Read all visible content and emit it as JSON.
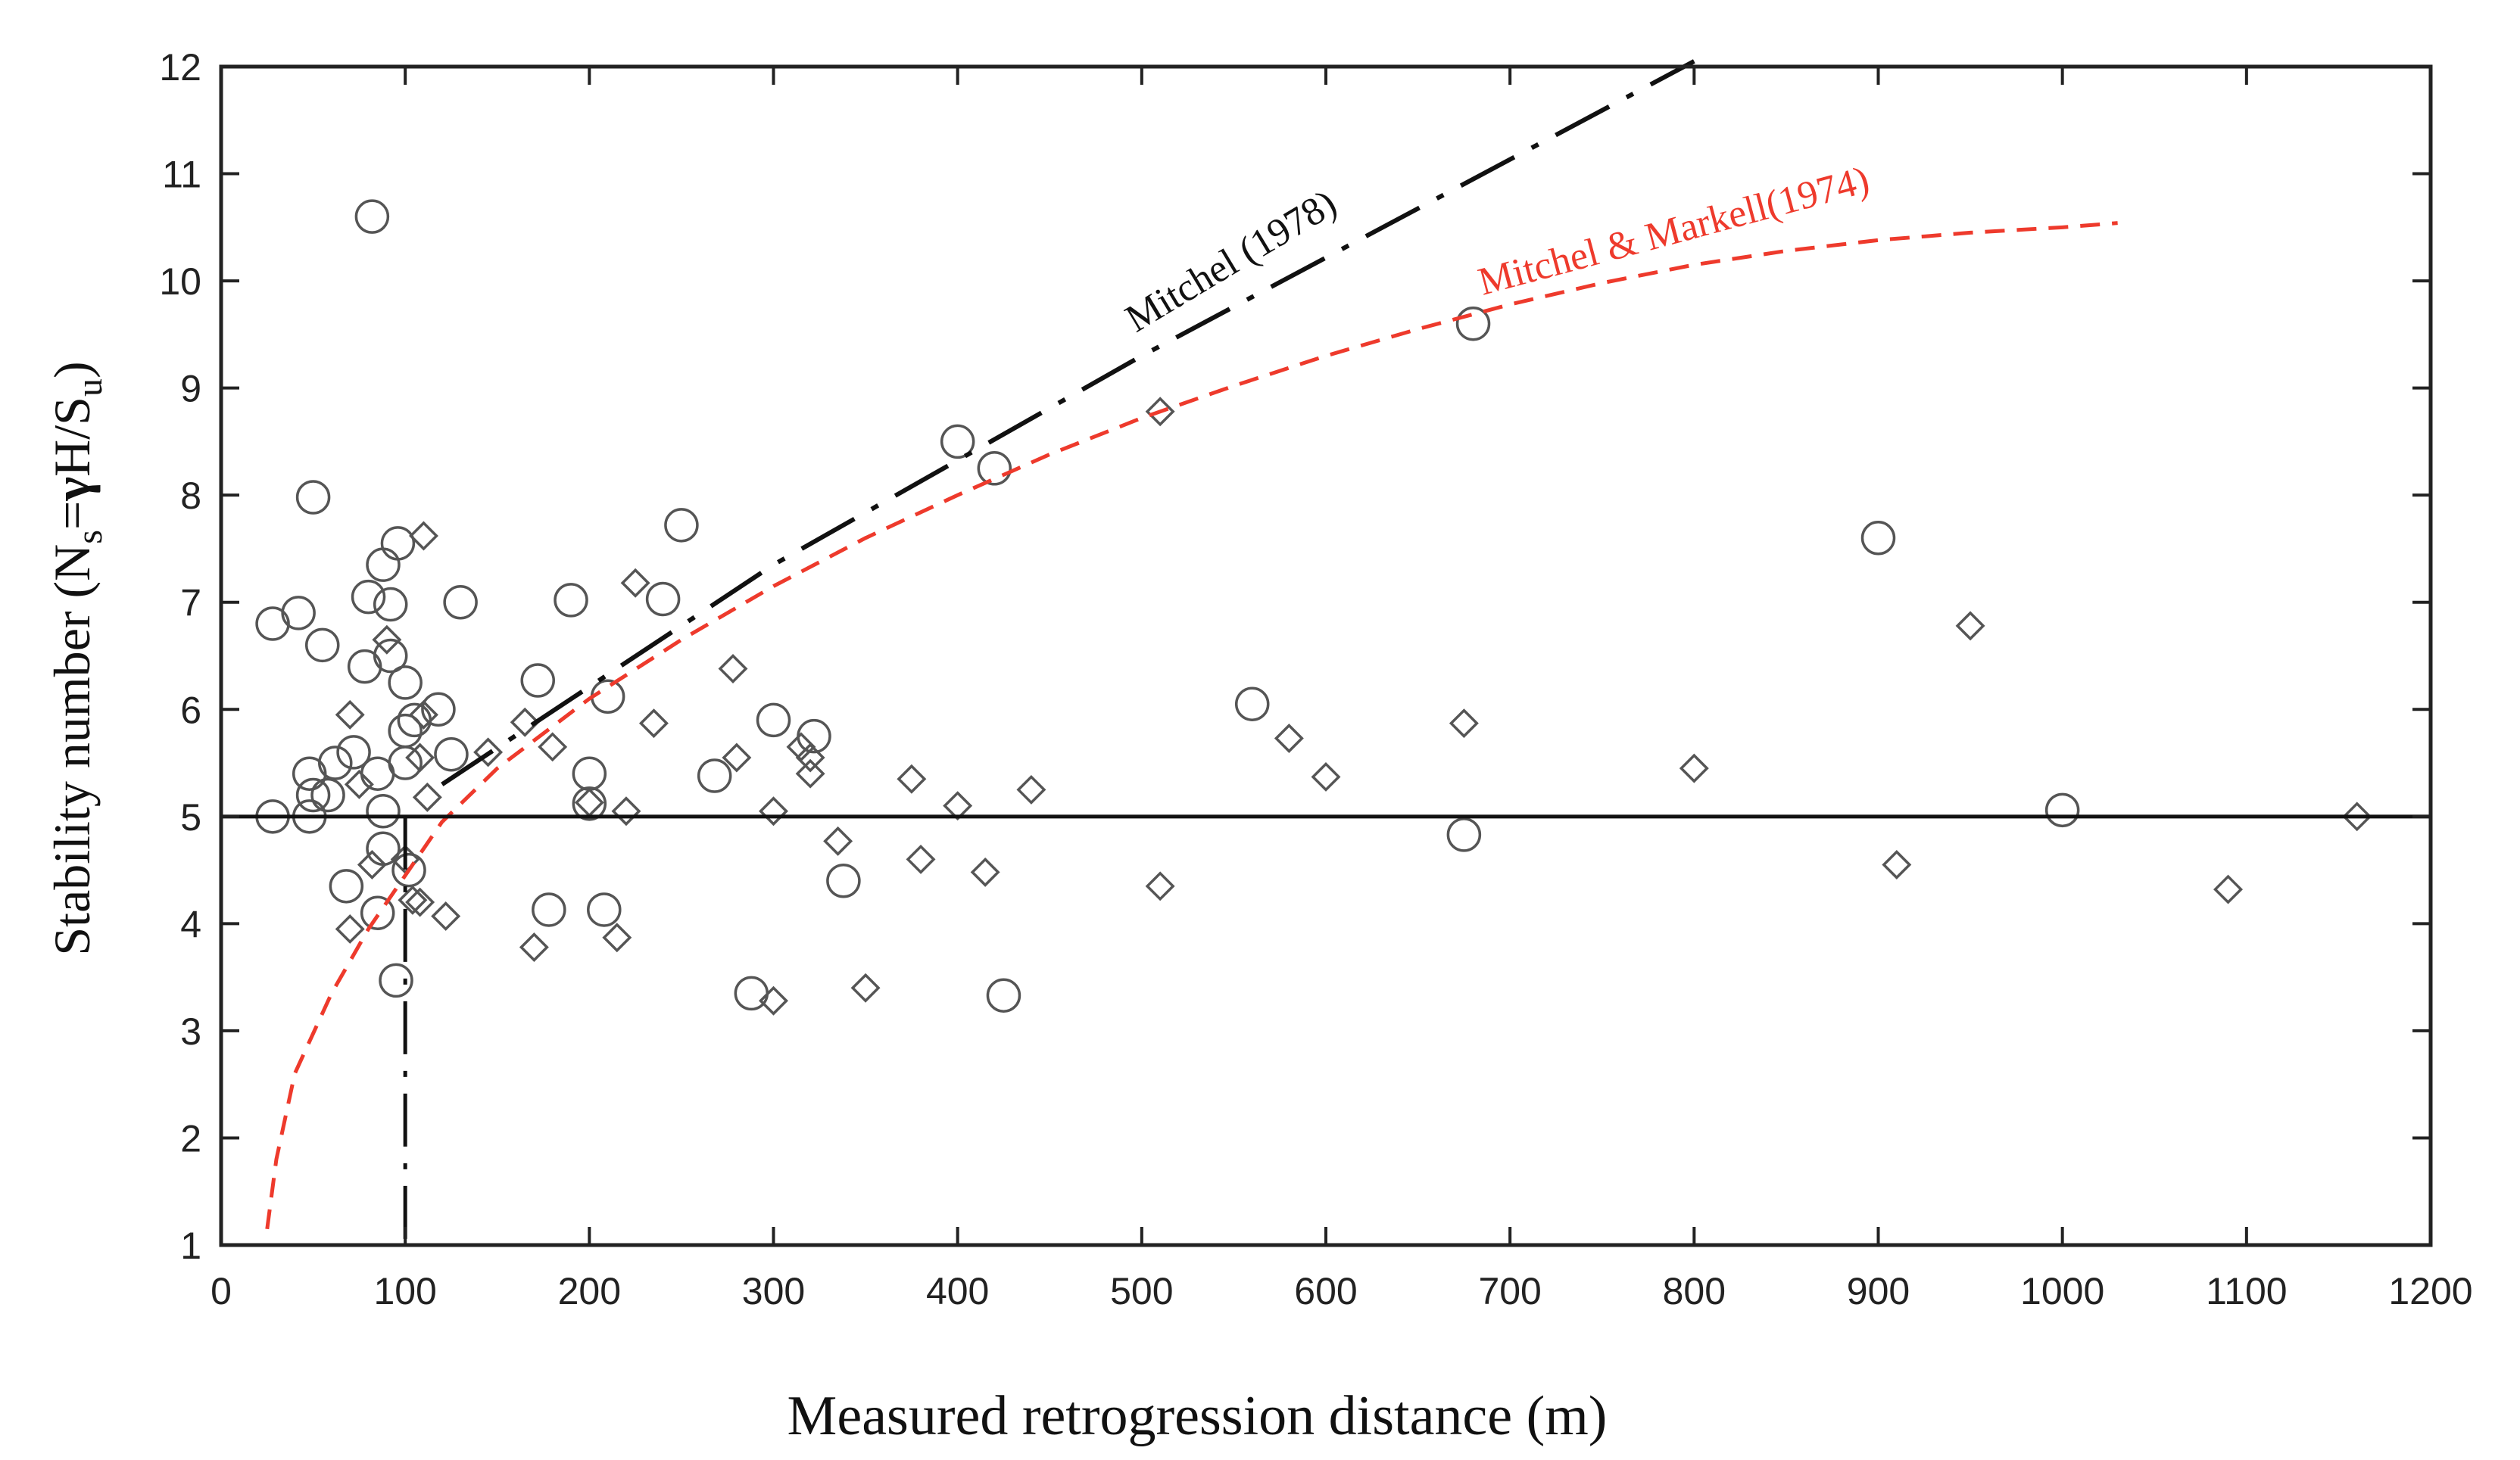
{
  "chart_data": {
    "type": "scatter",
    "title": "",
    "xlabel": "Measured retrogression distance (m)",
    "ylabel": {
      "prefix": "Stability number (N",
      "sub1": "s",
      "mid": "=",
      "gamma": "γ",
      "mid2": "H/S",
      "sub2": "u",
      "suffix": ")"
    },
    "xlim": [
      0,
      1200
    ],
    "ylim": [
      1,
      12
    ],
    "x_ticks": [
      0,
      100,
      200,
      300,
      400,
      500,
      600,
      700,
      800,
      900,
      1000,
      1100,
      1200
    ],
    "y_ticks": [
      1,
      2,
      3,
      4,
      5,
      6,
      7,
      8,
      9,
      10,
      11,
      12
    ],
    "reference_line": {
      "y": 5
    },
    "vertical_reference": {
      "x": 100,
      "y_from": 1,
      "y_to": 5
    },
    "series": [
      {
        "name": "circles",
        "marker": "circle",
        "points": [
          [
            82,
            10.6
          ],
          [
            28,
            6.8
          ],
          [
            42,
            6.9
          ],
          [
            50,
            7.98
          ],
          [
            55,
            6.6
          ],
          [
            80,
            7.05
          ],
          [
            88,
            7.35
          ],
          [
            92,
            6.98
          ],
          [
            96,
            7.55
          ],
          [
            130,
            7.0
          ],
          [
            62,
            5.5
          ],
          [
            72,
            5.6
          ],
          [
            48,
            5.4
          ],
          [
            50,
            5.2
          ],
          [
            58,
            5.2
          ],
          [
            28,
            5.0
          ],
          [
            48,
            5.0
          ],
          [
            78,
            6.4
          ],
          [
            92,
            6.5
          ],
          [
            100,
            6.25
          ],
          [
            100,
            5.8
          ],
          [
            105,
            5.9
          ],
          [
            118,
            6.0
          ],
          [
            125,
            5.58
          ],
          [
            100,
            5.5
          ],
          [
            85,
            5.4
          ],
          [
            88,
            5.05
          ],
          [
            88,
            4.7
          ],
          [
            68,
            4.35
          ],
          [
            85,
            4.1
          ],
          [
            95,
            3.47
          ],
          [
            102,
            4.5
          ],
          [
            172,
            6.27
          ],
          [
            190,
            7.02
          ],
          [
            210,
            6.12
          ],
          [
            178,
            4.13
          ],
          [
            208,
            4.13
          ],
          [
            200,
            5.4
          ],
          [
            200,
            5.12
          ],
          [
            240,
            7.03
          ],
          [
            250,
            7.72
          ],
          [
            268,
            5.38
          ],
          [
            300,
            5.9
          ],
          [
            322,
            5.75
          ],
          [
            288,
            3.35
          ],
          [
            338,
            4.4
          ],
          [
            400,
            8.5
          ],
          [
            420,
            8.25
          ],
          [
            425,
            3.33
          ],
          [
            560,
            6.05
          ],
          [
            675,
            4.83
          ],
          [
            680,
            9.6
          ],
          [
            900,
            7.6
          ],
          [
            1000,
            5.06
          ]
        ]
      },
      {
        "name": "diamonds",
        "marker": "diamond",
        "points": [
          [
            110,
            7.62
          ],
          [
            90,
            6.65
          ],
          [
            70,
            5.95
          ],
          [
            75,
            5.3
          ],
          [
            82,
            4.55
          ],
          [
            70,
            3.95
          ],
          [
            100,
            4.6
          ],
          [
            104,
            4.22
          ],
          [
            108,
            4.2
          ],
          [
            108,
            5.55
          ],
          [
            110,
            5.95
          ],
          [
            112,
            5.18
          ],
          [
            122,
            4.07
          ],
          [
            145,
            5.6
          ],
          [
            165,
            5.88
          ],
          [
            180,
            5.65
          ],
          [
            170,
            3.78
          ],
          [
            200,
            5.13
          ],
          [
            215,
            3.87
          ],
          [
            220,
            5.05
          ],
          [
            225,
            7.18
          ],
          [
            235,
            5.87
          ],
          [
            278,
            6.38
          ],
          [
            280,
            5.55
          ],
          [
            300,
            3.28
          ],
          [
            300,
            5.05
          ],
          [
            315,
            5.65
          ],
          [
            320,
            5.4
          ],
          [
            320,
            5.55
          ],
          [
            335,
            4.77
          ],
          [
            350,
            3.4
          ],
          [
            375,
            5.35
          ],
          [
            380,
            4.6
          ],
          [
            400,
            5.1
          ],
          [
            415,
            4.48
          ],
          [
            440,
            5.25
          ],
          [
            510,
            8.78
          ],
          [
            510,
            4.35
          ],
          [
            580,
            5.73
          ],
          [
            600,
            5.37
          ],
          [
            675,
            5.87
          ],
          [
            800,
            5.45
          ],
          [
            910,
            4.55
          ],
          [
            950,
            6.78
          ],
          [
            1090,
            4.32
          ],
          [
            1160,
            5.0
          ]
        ]
      },
      {
        "name": "Mitchel (1978)",
        "type": "line",
        "color": "#111111",
        "points": [
          [
            120,
            5.3
          ],
          [
            300,
            7.35
          ],
          [
            500,
            9.3
          ],
          [
            800,
            12.05
          ]
        ]
      },
      {
        "name": "Mitchel & Markell(1974)",
        "type": "line",
        "color": "#ee3a2c",
        "points": [
          [
            25,
            1.15
          ],
          [
            30,
            1.8
          ],
          [
            40,
            2.6
          ],
          [
            60,
            3.35
          ],
          [
            80,
            3.95
          ],
          [
            100,
            4.45
          ],
          [
            120,
            4.95
          ],
          [
            150,
            5.45
          ],
          [
            200,
            6.1
          ],
          [
            250,
            6.65
          ],
          [
            300,
            7.15
          ],
          [
            350,
            7.6
          ],
          [
            400,
            8.0
          ],
          [
            450,
            8.38
          ],
          [
            500,
            8.72
          ],
          [
            550,
            9.02
          ],
          [
            600,
            9.3
          ],
          [
            650,
            9.55
          ],
          [
            700,
            9.78
          ],
          [
            750,
            9.98
          ],
          [
            800,
            10.15
          ],
          [
            850,
            10.28
          ],
          [
            900,
            10.38
          ],
          [
            950,
            10.45
          ],
          [
            1000,
            10.5
          ],
          [
            1030,
            10.54
          ]
        ]
      }
    ],
    "annotations": {
      "mitchel_1978": "Mitchel (1978)",
      "mitchel_markell_1974": "Mitchel & Markell(1974)"
    },
    "colors": {
      "markers": "#555555",
      "axis": "#222222",
      "mitchel_1978": "#111111",
      "mitchel_markell_1974": "#ee3a2c"
    }
  }
}
